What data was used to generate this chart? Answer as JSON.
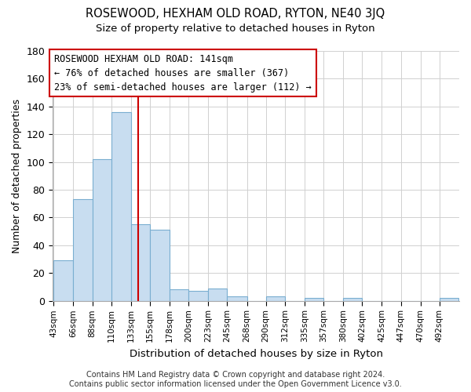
{
  "title": "ROSEWOOD, HEXHAM OLD ROAD, RYTON, NE40 3JQ",
  "subtitle": "Size of property relative to detached houses in Ryton",
  "xlabel": "Distribution of detached houses by size in Ryton",
  "ylabel": "Number of detached properties",
  "footer_line1": "Contains HM Land Registry data © Crown copyright and database right 2024.",
  "footer_line2": "Contains public sector information licensed under the Open Government Licence v3.0.",
  "bar_labels": [
    "43sqm",
    "66sqm",
    "88sqm",
    "110sqm",
    "133sqm",
    "155sqm",
    "178sqm",
    "200sqm",
    "223sqm",
    "245sqm",
    "268sqm",
    "290sqm",
    "312sqm",
    "335sqm",
    "357sqm",
    "380sqm",
    "402sqm",
    "425sqm",
    "447sqm",
    "470sqm",
    "492sqm"
  ],
  "bar_values": [
    29,
    73,
    102,
    136,
    55,
    51,
    8,
    7,
    9,
    3,
    0,
    3,
    0,
    2,
    0,
    2,
    0,
    0,
    0,
    0,
    2
  ],
  "bar_color": "#c8ddf0",
  "bar_edge_color": "#7aaed0",
  "ylim": [
    0,
    180
  ],
  "yticks": [
    0,
    20,
    40,
    60,
    80,
    100,
    120,
    140,
    160,
    180
  ],
  "vline_x": 141,
  "vline_color": "#cc0000",
  "annotation_title": "ROSEWOOD HEXHAM OLD ROAD: 141sqm",
  "annotation_line1": "← 76% of detached houses are smaller (367)",
  "annotation_line2": "23% of semi-detached houses are larger (112) →",
  "annotation_box_color": "#ffffff",
  "annotation_border_color": "#cc0000",
  "background_color": "#ffffff",
  "grid_color": "#d0d0d0"
}
